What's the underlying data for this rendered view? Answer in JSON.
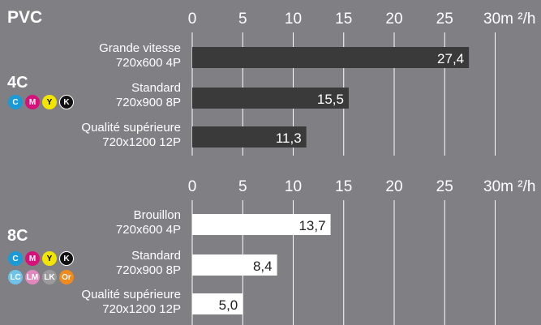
{
  "media_label": "PVC",
  "groups": [
    {
      "label": "4C",
      "inks": [
        {
          "text": "C",
          "color": "#1a9ad6"
        },
        {
          "text": "M",
          "color": "#d6117a"
        },
        {
          "text": "Y",
          "color": "#f2e500"
        },
        {
          "text": "K",
          "color": "#111111"
        }
      ]
    },
    {
      "label": "8C",
      "inks": [
        {
          "text": "C",
          "color": "#1a9ad6"
        },
        {
          "text": "M",
          "color": "#d6117a"
        },
        {
          "text": "Y",
          "color": "#f2e500"
        },
        {
          "text": "K",
          "color": "#111111"
        },
        {
          "text": "LC",
          "color": "#6fc3ea"
        },
        {
          "text": "LM",
          "color": "#e087bd"
        },
        {
          "text": "LK",
          "color": "#9b9b9b"
        },
        {
          "text": "Or",
          "color": "#f08a1c"
        }
      ]
    }
  ],
  "chart_data": [
    {
      "type": "bar",
      "orientation": "horizontal",
      "unit_label": "30m ²/h",
      "xticks": [
        "0",
        "5",
        "10",
        "15",
        "20",
        "25"
      ],
      "xlim": [
        0,
        30
      ],
      "bar_color": "#3a3a3a",
      "value_color": "#ffffff",
      "categories": [
        [
          "Grande vitesse",
          "720x600 4P"
        ],
        [
          "Standard",
          "720x900 8P"
        ],
        [
          "Qualité supérieure",
          "720x1200 12P"
        ]
      ],
      "values": [
        27.4,
        15.5,
        11.3
      ],
      "value_labels": [
        "27,4",
        "15,5",
        "11,3"
      ]
    },
    {
      "type": "bar",
      "orientation": "horizontal",
      "unit_label": "30m ²/h",
      "xticks": [
        "0",
        "5",
        "10",
        "15",
        "20",
        "25"
      ],
      "xlim": [
        0,
        30
      ],
      "bar_color": "#ffffff",
      "value_color": "#222222",
      "categories": [
        [
          "Brouillon",
          "720x600 4P"
        ],
        [
          "Standard",
          "720x900 8P"
        ],
        [
          "Qualité supérieure",
          "720x1200 12P"
        ]
      ],
      "values": [
        13.7,
        8.4,
        5.0
      ],
      "value_labels": [
        "13,7",
        "8,4",
        "5,0"
      ]
    }
  ]
}
